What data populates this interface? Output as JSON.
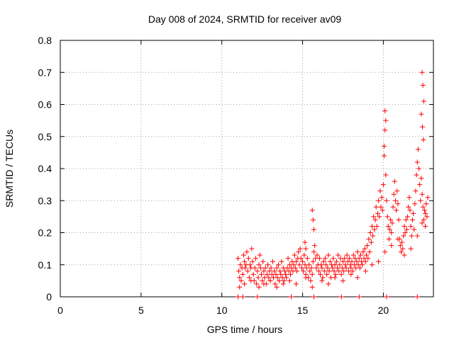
{
  "chart_data": {
    "type": "scatter",
    "title": "Day 008 of 2024, SRMTID for receiver av09",
    "xlabel": "GPS time / hours",
    "ylabel": "SRMTID / TECUs",
    "xlim": [
      0,
      23.1
    ],
    "ylim": [
      0,
      0.8
    ],
    "xticks": [
      0,
      5,
      10,
      15,
      20
    ],
    "xtick_labels": [
      "0",
      "5",
      "10",
      "15",
      "20"
    ],
    "yticks": [
      0,
      0.1,
      0.2,
      0.3,
      0.4,
      0.5,
      0.6,
      0.7,
      0.8
    ],
    "ytick_labels": [
      "0",
      "0.1",
      "0.2",
      "0.3",
      "0.4",
      "0.5",
      "0.6",
      "0.7",
      "0.8"
    ],
    "grid": true,
    "marker": "+",
    "series": [
      {
        "name": "SRMTID",
        "color": "#ff0000",
        "x": [
          11.0,
          11.05,
          11.1,
          11.15,
          11.2,
          11.25,
          11.3,
          11.35,
          11.4,
          11.45,
          11.5,
          11.55,
          11.6,
          11.65,
          11.7,
          11.75,
          11.8,
          11.85,
          11.9,
          11.95,
          12.0,
          12.05,
          12.1,
          12.15,
          12.2,
          12.25,
          12.3,
          12.35,
          12.4,
          12.45,
          12.5,
          12.55,
          12.6,
          12.65,
          12.7,
          12.75,
          12.8,
          12.85,
          12.9,
          12.95,
          13.0,
          13.05,
          13.1,
          13.15,
          13.2,
          13.25,
          13.3,
          13.35,
          13.4,
          13.45,
          13.5,
          13.55,
          13.6,
          13.65,
          13.7,
          13.75,
          13.8,
          13.85,
          13.9,
          13.95,
          14.0,
          14.05,
          14.1,
          14.15,
          14.2,
          14.25,
          14.3,
          14.35,
          14.4,
          14.45,
          14.5,
          14.55,
          14.6,
          14.65,
          14.7,
          14.75,
          14.8,
          14.85,
          14.9,
          14.95,
          15.0,
          15.05,
          15.1,
          15.15,
          15.2,
          15.25,
          15.3,
          15.35,
          15.4,
          15.45,
          15.5,
          15.55,
          15.6,
          15.65,
          15.7,
          15.75,
          15.8,
          15.85,
          15.9,
          15.95,
          16.0,
          16.05,
          16.1,
          16.15,
          16.2,
          16.25,
          16.3,
          16.35,
          16.4,
          16.45,
          16.5,
          16.55,
          16.6,
          16.65,
          16.7,
          16.75,
          16.8,
          16.85,
          16.9,
          16.95,
          17.0,
          17.05,
          17.1,
          17.15,
          17.2,
          17.25,
          17.3,
          17.35,
          17.4,
          17.45,
          17.5,
          17.55,
          17.6,
          17.65,
          17.7,
          17.75,
          17.8,
          17.85,
          17.9,
          17.95,
          18.0,
          18.05,
          18.1,
          18.15,
          18.2,
          18.25,
          18.3,
          18.35,
          18.4,
          18.45,
          18.5,
          18.55,
          18.6,
          18.65,
          18.7,
          18.75,
          18.8,
          18.85,
          18.9,
          18.95,
          19.0,
          19.05,
          19.1,
          19.15,
          19.2,
          19.25,
          19.3,
          19.35,
          19.4,
          19.45,
          19.5,
          19.55,
          19.6,
          19.65,
          19.7,
          19.75,
          19.8,
          19.85,
          19.9,
          19.95,
          20.0,
          20.05,
          20.1,
          20.15,
          20.2,
          20.25,
          20.3,
          20.35,
          20.4,
          20.45,
          20.5,
          20.55,
          20.6,
          20.65,
          20.7,
          20.75,
          20.8,
          20.85,
          20.9,
          20.95,
          21.0,
          21.05,
          21.1,
          21.15,
          21.2,
          21.25,
          21.3,
          21.35,
          21.4,
          21.45,
          21.5,
          21.55,
          21.6,
          21.65,
          21.7,
          21.75,
          21.8,
          21.85,
          21.9,
          21.95,
          22.0,
          22.05,
          22.1,
          22.15,
          22.2,
          22.25,
          22.3,
          22.35,
          22.4,
          22.45,
          22.5,
          22.55,
          22.6,
          22.65,
          22.7,
          22.75,
          11.1,
          11.4,
          11.8,
          12.3,
          12.6,
          13.0,
          13.4,
          13.8,
          14.2,
          14.6,
          15.2,
          15.6,
          16.2,
          16.6,
          17.0,
          17.5,
          18.0,
          18.4,
          18.9,
          19.3,
          19.7,
          20.1,
          20.5,
          20.9,
          21.3,
          21.7,
          22.1,
          22.4,
          22.6,
          11.0,
          11.3,
          12.2,
          14.3,
          15.7,
          17.4,
          18.5,
          20.2,
          22.1,
          15.6,
          15.65,
          15.7,
          15.15,
          15.2,
          20.1,
          20.15,
          20.05,
          22.4,
          22.45,
          22.5,
          22.35,
          22.42,
          22.48
        ],
        "y": [
          0.12,
          0.08,
          0.06,
          0.1,
          0.05,
          0.09,
          0.07,
          0.13,
          0.11,
          0.09,
          0.1,
          0.14,
          0.08,
          0.12,
          0.06,
          0.1,
          0.09,
          0.15,
          0.11,
          0.07,
          0.05,
          0.09,
          0.12,
          0.04,
          0.08,
          0.06,
          0.1,
          0.13,
          0.09,
          0.07,
          0.05,
          0.11,
          0.08,
          0.06,
          0.09,
          0.04,
          0.07,
          0.1,
          0.06,
          0.08,
          0.05,
          0.09,
          0.07,
          0.11,
          0.06,
          0.08,
          0.04,
          0.07,
          0.09,
          0.06,
          0.1,
          0.05,
          0.08,
          0.07,
          0.11,
          0.06,
          0.09,
          0.05,
          0.08,
          0.07,
          0.06,
          0.09,
          0.12,
          0.08,
          0.1,
          0.07,
          0.09,
          0.11,
          0.08,
          0.1,
          0.13,
          0.09,
          0.11,
          0.08,
          0.12,
          0.14,
          0.1,
          0.15,
          0.12,
          0.09,
          0.11,
          0.08,
          0.13,
          0.1,
          0.07,
          0.09,
          0.12,
          0.06,
          0.1,
          0.08,
          0.05,
          0.09,
          0.07,
          0.11,
          0.14,
          0.16,
          0.12,
          0.09,
          0.13,
          0.1,
          0.08,
          0.12,
          0.07,
          0.1,
          0.09,
          0.06,
          0.11,
          0.08,
          0.12,
          0.1,
          0.07,
          0.09,
          0.13,
          0.08,
          0.11,
          0.06,
          0.1,
          0.09,
          0.12,
          0.08,
          0.1,
          0.07,
          0.11,
          0.09,
          0.13,
          0.08,
          0.1,
          0.12,
          0.07,
          0.09,
          0.11,
          0.08,
          0.12,
          0.1,
          0.09,
          0.13,
          0.11,
          0.08,
          0.12,
          0.1,
          0.09,
          0.11,
          0.08,
          0.13,
          0.1,
          0.12,
          0.09,
          0.11,
          0.14,
          0.1,
          0.12,
          0.09,
          0.13,
          0.11,
          0.1,
          0.14,
          0.12,
          0.15,
          0.11,
          0.13,
          0.16,
          0.12,
          0.18,
          0.14,
          0.2,
          0.17,
          0.22,
          0.19,
          0.25,
          0.21,
          0.24,
          0.28,
          0.22,
          0.26,
          0.3,
          0.25,
          0.33,
          0.28,
          0.31,
          0.27,
          0.35,
          0.44,
          0.52,
          0.38,
          0.3,
          0.25,
          0.22,
          0.18,
          0.21,
          0.24,
          0.2,
          0.23,
          0.28,
          0.32,
          0.36,
          0.3,
          0.27,
          0.33,
          0.29,
          0.24,
          0.18,
          0.16,
          0.14,
          0.17,
          0.15,
          0.19,
          0.22,
          0.2,
          0.24,
          0.21,
          0.25,
          0.28,
          0.31,
          0.27,
          0.22,
          0.19,
          0.24,
          0.26,
          0.21,
          0.29,
          0.33,
          0.38,
          0.42,
          0.46,
          0.4,
          0.35,
          0.3,
          0.37,
          0.32,
          0.28,
          0.24,
          0.27,
          0.22,
          0.29,
          0.25,
          0.31,
          0.03,
          0.04,
          0.05,
          0.03,
          0.04,
          0.05,
          0.03,
          0.04,
          0.05,
          0.04,
          0.06,
          0.03,
          0.05,
          0.04,
          0.06,
          0.05,
          0.07,
          0.06,
          0.08,
          0.1,
          0.11,
          0.14,
          0.16,
          0.18,
          0.13,
          0.15,
          0.19,
          0.23,
          0.26,
          0.0,
          0.0,
          0.0,
          0.0,
          0.0,
          0.0,
          0.0,
          0.0,
          0.0,
          0.27,
          0.24,
          0.21,
          0.17,
          0.15,
          0.58,
          0.55,
          0.47,
          0.7,
          0.66,
          0.61,
          0.57,
          0.53,
          0.49
        ]
      }
    ]
  }
}
